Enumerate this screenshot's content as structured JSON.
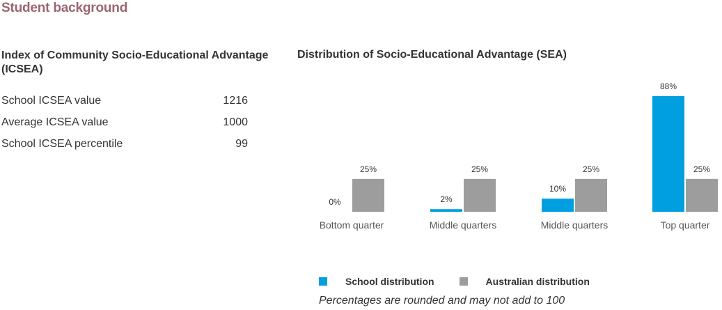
{
  "section_title": "Student background",
  "icsea": {
    "heading": "Index of Community Socio-Educational Advantage (ICSEA)",
    "rows": [
      {
        "label": "School ICSEA value",
        "value": "1216"
      },
      {
        "label": "Average ICSEA value",
        "value": "1000"
      },
      {
        "label": "School ICSEA percentile",
        "value": "99"
      }
    ]
  },
  "sea": {
    "heading": "Distribution of Socio-Educational Advantage (SEA)"
  },
  "colors": {
    "school": "#009fdf",
    "australian": "#9d9d9d",
    "title_accent": "#9b6573"
  },
  "chart_data": {
    "type": "bar",
    "title": "Distribution of Socio-Educational Advantage (SEA)",
    "categories": [
      "Bottom quarter",
      "Middle quarters",
      "Middle quarters",
      "Top quarter"
    ],
    "series": [
      {
        "name": "School distribution",
        "values": [
          0,
          2,
          10,
          88
        ],
        "labels": [
          "0%",
          "2%",
          "10%",
          "88%"
        ]
      },
      {
        "name": "Australian distribution",
        "values": [
          25,
          25,
          25,
          25
        ],
        "labels": [
          "25%",
          "25%",
          "25%",
          "25%"
        ]
      }
    ],
    "ylim": [
      0,
      88
    ],
    "grid": false,
    "legend_position": "bottom"
  },
  "legend": {
    "school_label": "School distribution",
    "australian_label": "Australian distribution"
  },
  "footnote": "Percentages are rounded and may not add to 100"
}
